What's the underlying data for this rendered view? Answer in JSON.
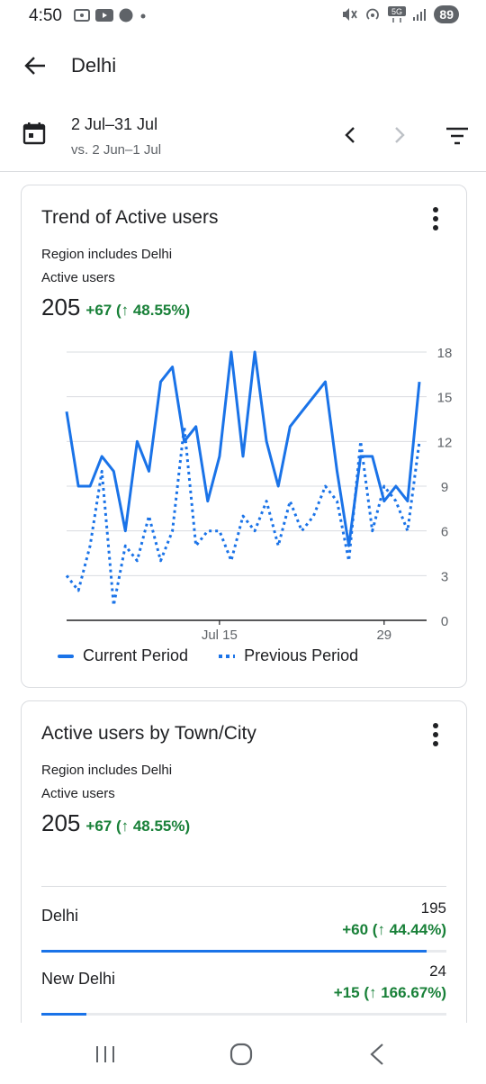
{
  "status_bar": {
    "time": "4:50",
    "battery": "89",
    "network": "5G"
  },
  "app_bar": {
    "title": "Delhi"
  },
  "date_bar": {
    "range": "2 Jul–31 Jul",
    "compare": "vs. 2 Jun–1 Jul"
  },
  "trend_card": {
    "title": "Trend of Active users",
    "subtitle1": "Region includes Delhi",
    "subtitle2": "Active users",
    "total": "205",
    "change": "+67 (↑ 48.55%)",
    "legend_current": "Current Period",
    "legend_previous": "Previous Period"
  },
  "chart_data": {
    "type": "line",
    "x_ticks": [
      "Jul 15",
      "29"
    ],
    "y_ticks": [
      "18",
      "15",
      "12",
      "9",
      "6",
      "3",
      "0"
    ],
    "ylim": [
      0,
      18
    ],
    "grid": true,
    "legend_position": "bottom",
    "series": [
      {
        "name": "Current Period",
        "style": "solid",
        "color": "#1a73e8",
        "values": [
          14,
          9,
          9,
          11,
          10,
          6,
          12,
          10,
          16,
          17,
          12,
          13,
          8,
          11,
          18,
          11,
          18,
          12,
          9,
          13,
          14,
          15,
          16,
          10,
          5,
          11,
          11,
          8,
          9,
          8,
          16
        ]
      },
      {
        "name": "Previous Period",
        "style": "dashed",
        "color": "#1a73e8",
        "values": [
          3,
          2,
          5,
          10,
          1,
          5,
          4,
          7,
          4,
          6,
          13,
          5,
          6,
          6,
          4,
          7,
          6,
          8,
          5,
          8,
          6,
          7,
          9,
          8,
          4,
          12,
          6,
          9,
          8,
          6,
          12
        ]
      }
    ]
  },
  "city_card": {
    "title": "Active users by Town/City",
    "subtitle1": "Region includes Delhi",
    "subtitle2": "Active users",
    "total": "205",
    "change": "+67 (↑ 48.55%)",
    "rows": [
      {
        "label": "Delhi",
        "value": "195",
        "change": "+60 (↑ 44.44%)",
        "share": 0.95
      },
      {
        "label": "New Delhi",
        "value": "24",
        "change": "+15 (↑ 166.67%)",
        "share": 0.11
      }
    ]
  }
}
